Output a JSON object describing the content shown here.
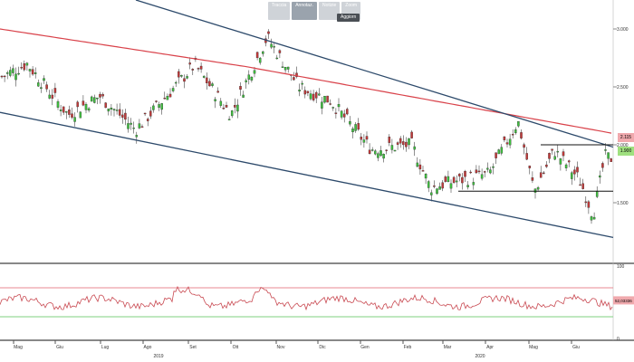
{
  "toolbar": {
    "items": [
      "Traccia",
      "Annotaz.",
      "Notizie",
      "Zoom"
    ],
    "update_button": "Aggiorn"
  },
  "chart_data": [
    {
      "type": "candlestick",
      "title": "",
      "x_months": [
        "Mag",
        "Giu",
        "Lug",
        "Ago",
        "Set",
        "Ott",
        "Nov",
        "Dic",
        "Gen",
        "Feb",
        "Mar",
        "Apr",
        "Mag",
        "Giu"
      ],
      "years": [
        "2019",
        "2020"
      ],
      "y_ticks": [
        "3.000",
        "2.500",
        "2.000",
        "1.500"
      ],
      "ylim": [
        1000,
        3250
      ],
      "key_prices": {
        "high": 2940,
        "early_high": 2700,
        "mid_low": 2110,
        "trough": 1590,
        "recent_low": 1390,
        "last": 1900
      },
      "overlays": [
        {
          "name": "moving-average",
          "color": "#d9424a",
          "values_start": 3000,
          "values_end": 2100
        },
        {
          "name": "upper-trendline",
          "color": "#2d4a6b",
          "from": 3250,
          "to": 1980
        },
        {
          "name": "lower-trendline",
          "color": "#2d4a6b",
          "from": 2280,
          "to": 1200
        },
        {
          "name": "support-line",
          "color": "#111111",
          "level": 1600
        },
        {
          "name": "resistance-line",
          "color": "#111111",
          "level": 2000
        }
      ],
      "price_tags": [
        {
          "label": "2.115",
          "color": "#f0a9ad"
        },
        {
          "label": "1.900",
          "color": "#9fe07f"
        }
      ],
      "candle_colors": {
        "up": "#3fbf3f",
        "down": "#c23a3a"
      }
    },
    {
      "type": "line",
      "name": "oscillator",
      "y_ticks": [
        "100",
        "0"
      ],
      "ylim": [
        0,
        100
      ],
      "upper_band": 70,
      "lower_band": 30,
      "band_colors": {
        "upper": "#e88a92",
        "lower": "#7fd27f"
      },
      "current_label": "52,03336",
      "line_color": "#c94a52"
    }
  ]
}
